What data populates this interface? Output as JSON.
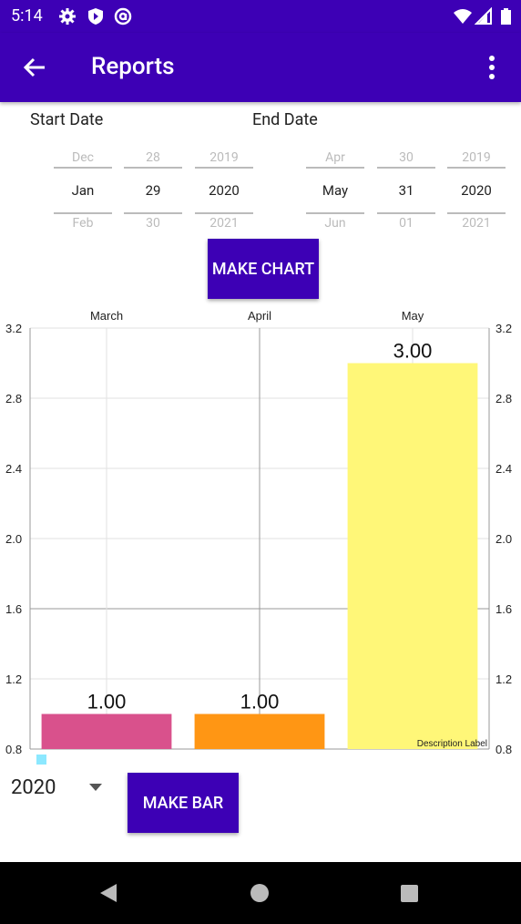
{
  "status_bar": {
    "time": "5:14",
    "icons_left": [
      "gear-icon",
      "shield-icon",
      "at-sign-icon"
    ],
    "icons_right": [
      "wifi-icon",
      "signal-icon",
      "battery-icon"
    ]
  },
  "app_bar": {
    "title": "Reports",
    "back_icon": "arrow-left-icon",
    "menu_icon": "more-vertical-icon",
    "color": "#3d00b5"
  },
  "start_date": {
    "label": "Start Date",
    "month": {
      "prev": "Dec",
      "current": "Jan",
      "next": "Feb"
    },
    "day": {
      "prev": "28",
      "current": "29",
      "next": "30"
    },
    "year": {
      "prev": "2019",
      "current": "2020",
      "next": "2021"
    }
  },
  "end_date": {
    "label": "End Date",
    "month": {
      "prev": "Apr",
      "current": "May",
      "next": "Jun"
    },
    "day": {
      "prev": "30",
      "current": "31",
      "next": "01"
    },
    "year": {
      "prev": "2019",
      "current": "2020",
      "next": "2021"
    }
  },
  "make_chart_label": "MAKE CHART",
  "chart_data": {
    "type": "bar",
    "categories": [
      "March",
      "April",
      "May"
    ],
    "values": [
      1.0,
      1.0,
      3.0
    ],
    "value_labels": [
      "1.00",
      "1.00",
      "3.00"
    ],
    "colors": [
      "#d9518c",
      "#ff9614",
      "#fff778"
    ],
    "ylim": [
      0.8,
      3.2
    ],
    "y_ticks": [
      "0.8",
      "1.2",
      "1.6",
      "2.0",
      "2.4",
      "2.8",
      "3.2"
    ],
    "axis_right": true,
    "grid": true,
    "x_axis_position": "top",
    "description": "Description Label",
    "legend_color": "#8ce8ff"
  },
  "year_selector": {
    "value": "2020"
  },
  "make_bar_label": "MAKE BAR",
  "nav_bar": {
    "icons": [
      "back-triangle-icon",
      "home-circle-icon",
      "recents-square-icon"
    ]
  }
}
